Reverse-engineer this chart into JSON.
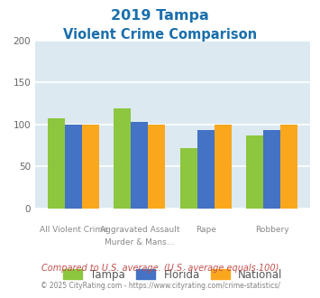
{
  "title_line1": "2019 Tampa",
  "title_line2": "Violent Crime Comparison",
  "title_color": "#1a6fad",
  "upper_labels": [
    "",
    "Aggravated Assault",
    "",
    ""
  ],
  "lower_labels": [
    "All Violent Crime",
    "Murder & Mans...",
    "Rape",
    "Robbery"
  ],
  "tampa_values": [
    107,
    119,
    72,
    87
  ],
  "florida_values": [
    100,
    103,
    93,
    93
  ],
  "national_values": [
    100,
    100,
    100,
    100
  ],
  "tampa_color": "#8dc63f",
  "florida_color": "#4472c4",
  "national_color": "#faa71e",
  "ylim": [
    0,
    200
  ],
  "yticks": [
    0,
    50,
    100,
    150,
    200
  ],
  "plot_bg_color": "#dce9f0",
  "fig_bg_color": "#ffffff",
  "grid_color": "#ffffff",
  "legend_labels": [
    "Tampa",
    "Florida",
    "National"
  ],
  "footnote1": "Compared to U.S. average. (U.S. average equals 100)",
  "footnote2": "© 2025 CityRating.com - https://www.cityrating.com/crime-statistics/",
  "footnote1_color": "#c0504d",
  "footnote2_color": "#808080"
}
